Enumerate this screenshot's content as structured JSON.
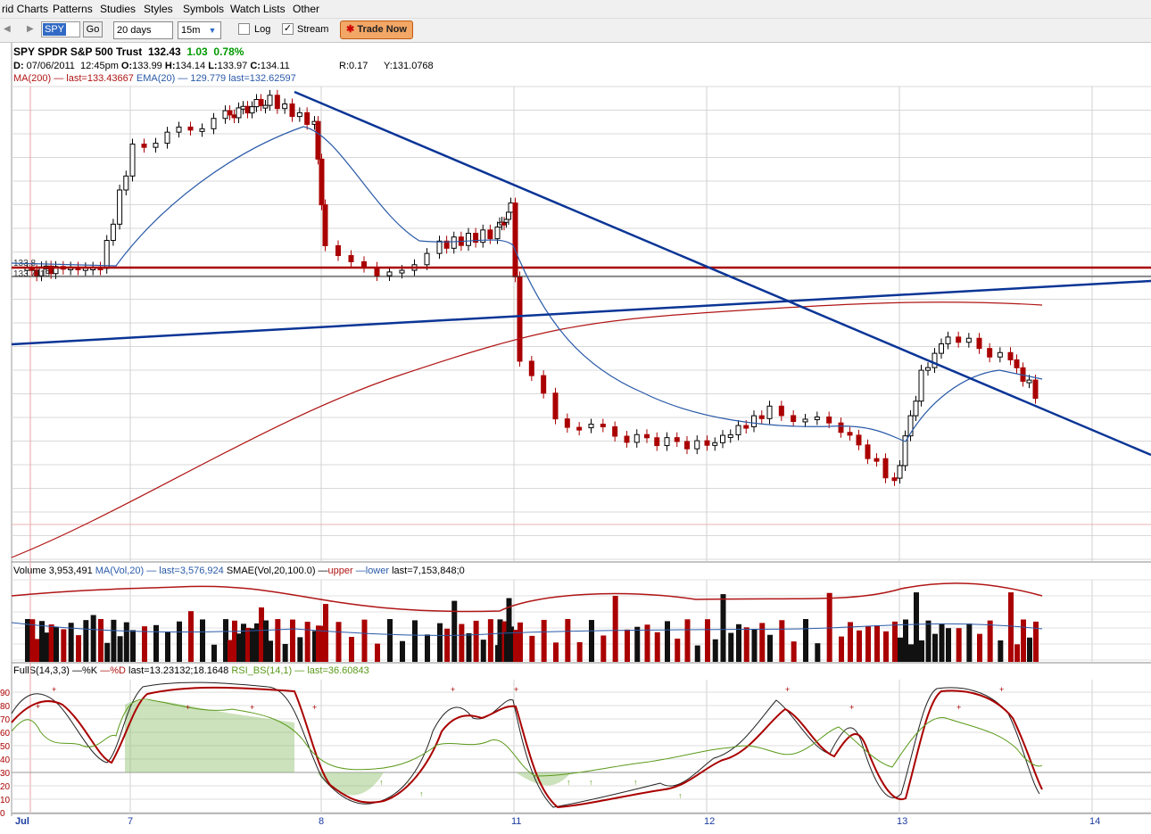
{
  "menu": [
    "rid Charts",
    "Patterns",
    "Studies",
    "Styles",
    "Symbols",
    "Watch Lists",
    "Other"
  ],
  "toolbar": {
    "symbol": "SPY",
    "go_label": "Go",
    "period_value": "20 days",
    "interval_value": "15m",
    "log_label": "Log",
    "log_checked": "",
    "stream_label": "Stream",
    "stream_checked": "✓",
    "trade_label": "Trade Now",
    "trade_icon": "✱"
  },
  "header": {
    "symbol": "SPY",
    "name": "SPDR S&P 500 Trust",
    "last": "132.43",
    "change": "1.03",
    "change_pct": "0.78%",
    "change_color": "#009900"
  },
  "quote": {
    "date_label": "D:",
    "date_value": "07/06/2011",
    "time": "12:45pm",
    "o_label": "O:",
    "o_value": "133.99",
    "h_label": "H:",
    "h_value": "134.14",
    "l_label": "L:",
    "l_value": "133.97",
    "c_label": "C:",
    "c_value": "134.11",
    "r_text": "R:0.17",
    "y_text": "Y:131.0768"
  },
  "overlays": {
    "ma_text": "MA(200) — last=133.43667",
    "ema_text": "EMA(20) — 129.779 last=132.62597"
  },
  "volume_panel": {
    "title": "Volume 3,953,491",
    "ma_text": "MA(Vol,20) — last=3,576,924",
    "smae_text": "SMAE(Vol,20,100.0) —",
    "upper_text": "upper",
    "lower_text": "—lower",
    "last_text": "last=7,153,848;0"
  },
  "stoch_panel": {
    "title": "FullS(14,3,3) —%K",
    "d_text": "—%D",
    "last_text": "last=13.23132;18.1648",
    "rsi_text": "RSI_BS(14,1)",
    "rsi_last": "— last=36.60843",
    "y_ticks": [
      "90",
      "80",
      "70",
      "60",
      "50",
      "40",
      "30",
      "20",
      "10",
      "0"
    ]
  },
  "price_axis_labels": [
    "133.8",
    "133.7113"
  ],
  "x_labels": [
    "Jul",
    "7",
    "8",
    "11",
    "12",
    "13",
    "14"
  ],
  "colors": {
    "up": "#000000",
    "down": "#aa0000",
    "ma200": "#b01515",
    "ema20": "#2a5aa8",
    "trendline": "#0a3596",
    "hline": "#aa0000",
    "rsi": "#5a9a1a",
    "fill": "#8fbf6a",
    "volume_bands": "#b01515",
    "volume_ma": "#2a5aa8"
  }
}
